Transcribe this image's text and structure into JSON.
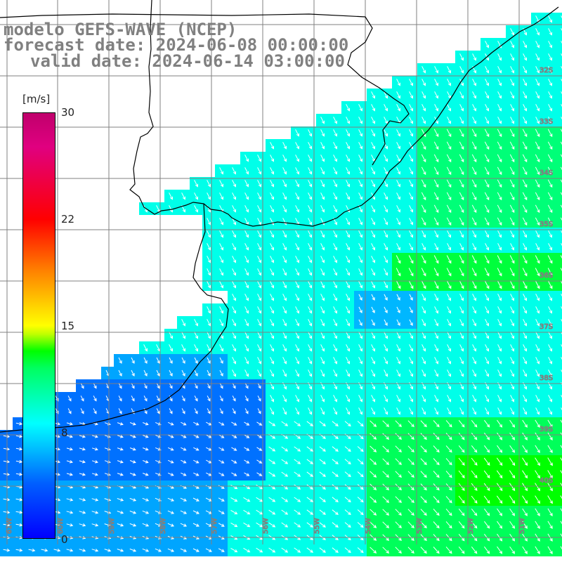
{
  "title": {
    "line1": "modelo GEFS-WAVE (NCEP)",
    "line2": "forecast date: 2024-06-08 00:00:00",
    "line3": "valid date: 2024-06-14 03:00:00"
  },
  "colorbar": {
    "unit": "[m/s]",
    "ticks": [
      "30",
      "22",
      "15",
      "8",
      "0"
    ],
    "tick_values": [
      30,
      22,
      15,
      8,
      0
    ],
    "min": 0,
    "max": 30,
    "colors": [
      "#0000ff",
      "#0060ff",
      "#00c8ff",
      "#00ffff",
      "#00ff60",
      "#00ff00",
      "#c0ff00",
      "#ffff00",
      "#ff8000",
      "#ff0000",
      "#e00080",
      "#c0006c"
    ]
  },
  "map": {
    "variable": "wind speed",
    "field_colors": {
      "ocean_low": "#1060ff",
      "ocean_mid": "#00e8ff",
      "ocean_high": "#00f040",
      "land": "#ffffff",
      "coast": "#000000",
      "grid": "#808080"
    },
    "lat_labels": [
      "32S",
      "33S",
      "34S",
      "35S",
      "36S",
      "37S",
      "38S",
      "39S",
      "40S"
    ],
    "lon_labels": [
      "61W",
      "60W",
      "59W",
      "58W",
      "57W",
      "56W",
      "55W",
      "54W",
      "53W",
      "52W",
      "51W"
    ]
  }
}
